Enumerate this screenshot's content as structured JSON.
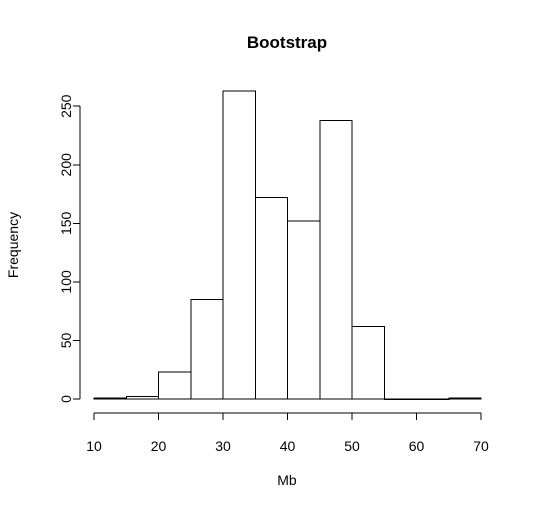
{
  "chart_data": {
    "type": "bar",
    "title": "Bootstrap",
    "xlabel": "Mb",
    "ylabel": "Frequency",
    "bins": [
      {
        "from": 10,
        "to": 15,
        "value": 1
      },
      {
        "from": 15,
        "to": 20,
        "value": 2
      },
      {
        "from": 20,
        "to": 25,
        "value": 23
      },
      {
        "from": 25,
        "to": 30,
        "value": 85
      },
      {
        "from": 30,
        "to": 35,
        "value": 263
      },
      {
        "from": 35,
        "to": 40,
        "value": 172
      },
      {
        "from": 40,
        "to": 45,
        "value": 152
      },
      {
        "from": 45,
        "to": 50,
        "value": 238
      },
      {
        "from": 50,
        "to": 55,
        "value": 62
      },
      {
        "from": 55,
        "to": 60,
        "value": 0
      },
      {
        "from": 60,
        "to": 65,
        "value": 0
      },
      {
        "from": 65,
        "to": 70,
        "value": 1
      }
    ],
    "xlim": [
      10,
      70
    ],
    "ylim": [
      0,
      263
    ],
    "x_ticks": [
      10,
      20,
      30,
      40,
      50,
      60,
      70
    ],
    "y_ticks": [
      0,
      50,
      100,
      150,
      200,
      250
    ],
    "grid": false,
    "bar_fill": "#ffffff",
    "bar_stroke": "#000000"
  }
}
